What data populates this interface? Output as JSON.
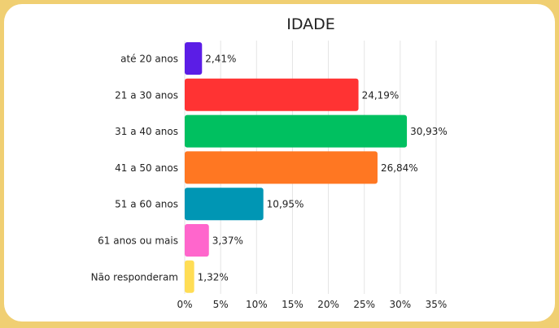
{
  "chart_data": {
    "type": "bar",
    "orientation": "horizontal",
    "title": "IDADE",
    "categories": [
      "até 20 anos",
      "21 a 30 anos",
      "31 a 40 anos",
      "41 a 50 anos",
      "51 a 60 anos",
      "61 anos ou mais",
      "Não responderam"
    ],
    "values": [
      2.41,
      24.19,
      30.93,
      26.84,
      10.95,
      3.37,
      1.32
    ],
    "data_labels": [
      "2,41%",
      "24,19%",
      "30,93%",
      "26,84%",
      "10,95%",
      "3,37%",
      "1,32%"
    ],
    "colors": [
      "#5b1de6",
      "#ff3333",
      "#00c060",
      "#ff7722",
      "#0096b4",
      "#ff66cc",
      "#ffdd55"
    ],
    "xlim": [
      0,
      35
    ],
    "x_ticks": [
      0,
      5,
      10,
      15,
      20,
      25,
      30,
      35
    ],
    "x_tick_labels": [
      "0%",
      "5%",
      "10%",
      "15%",
      "20%",
      "25%",
      "30%",
      "35%"
    ],
    "grid": true,
    "background_color": "#f0cf72"
  }
}
